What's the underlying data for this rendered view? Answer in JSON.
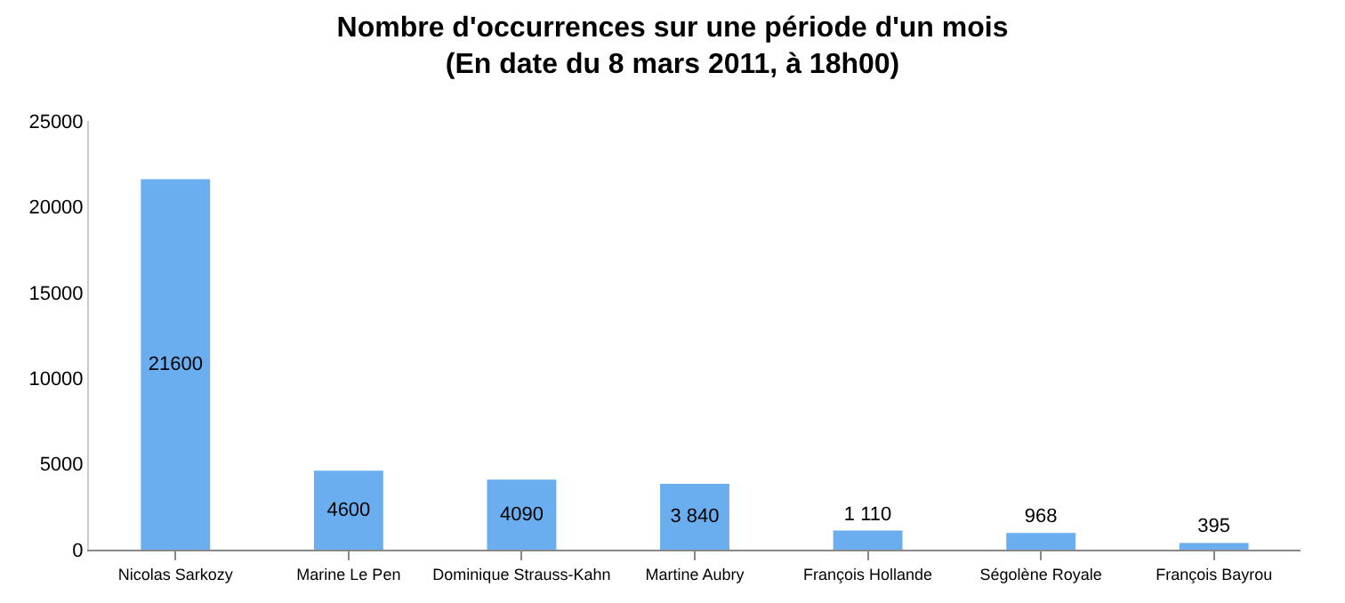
{
  "chart_data": {
    "type": "bar",
    "title": "Nombre d'occurrences sur une période d'un mois",
    "subtitle": "(En date du 8 mars 2011, à 18h00)",
    "categories": [
      "Nicolas Sarkozy",
      "Marine Le Pen",
      "Dominique Strauss-Kahn",
      "Martine Aubry",
      "François Hollande",
      "Ségolène Royale",
      "François Bayrou"
    ],
    "values": [
      21600,
      4600,
      4090,
      3840,
      1110,
      968,
      395
    ],
    "value_labels": [
      "21600",
      "4600",
      "4090",
      "3 840",
      "1 110",
      "968",
      "395"
    ],
    "color": "#6aaef0",
    "ylim": [
      0,
      25000
    ],
    "yticks": [
      0,
      5000,
      10000,
      15000,
      20000,
      25000
    ],
    "grid": false,
    "legend": false
  }
}
